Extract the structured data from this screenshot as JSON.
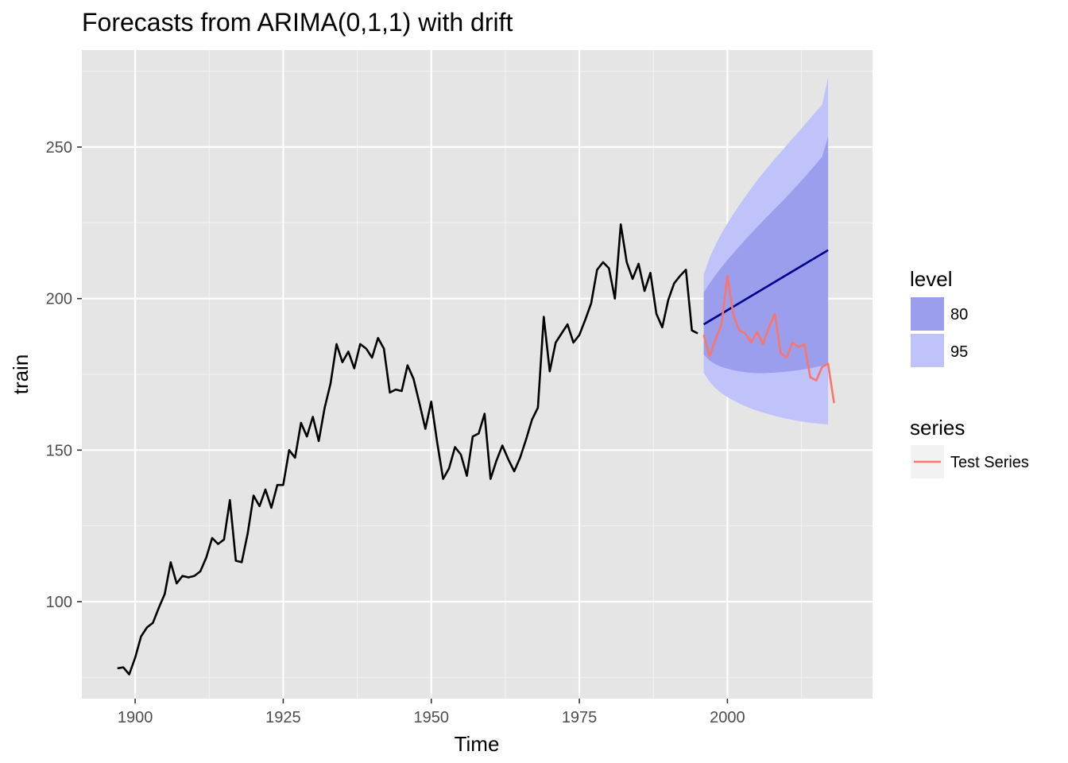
{
  "chart_data": {
    "type": "line",
    "title": "Forecasts from ARIMA(0,1,1) with drift",
    "xlabel": "Time",
    "ylabel": "train",
    "xlim": [
      1891,
      2024.5
    ],
    "ylim": [
      68,
      282
    ],
    "x_ticks": [
      1900,
      1925,
      1950,
      1975,
      2000
    ],
    "y_ticks": [
      100,
      150,
      200,
      250
    ],
    "grid": true,
    "legend_position": "right",
    "series": [
      {
        "role": "observed",
        "color": "#000000",
        "x": [
          1897,
          1898,
          1899,
          1900,
          1901,
          1902,
          1903,
          1904,
          1905,
          1906,
          1907,
          1908,
          1909,
          1910,
          1911,
          1912,
          1913,
          1914,
          1915,
          1916,
          1917,
          1918,
          1919,
          1920,
          1921,
          1922,
          1923,
          1924,
          1925,
          1926,
          1927,
          1928,
          1929,
          1930,
          1931,
          1932,
          1933,
          1934,
          1935,
          1936,
          1937,
          1938,
          1939,
          1940,
          1941,
          1942,
          1943,
          1944,
          1945,
          1946,
          1947,
          1948,
          1949,
          1950,
          1951,
          1952,
          1953,
          1954,
          1955,
          1956,
          1957,
          1958,
          1959,
          1960,
          1961,
          1962,
          1963,
          1964,
          1965,
          1966,
          1967,
          1968,
          1969,
          1970,
          1971,
          1972,
          1973,
          1974,
          1975,
          1976,
          1977,
          1978,
          1979,
          1980,
          1981,
          1982,
          1983,
          1984,
          1985,
          1986,
          1987,
          1988,
          1989,
          1990,
          1991,
          1992,
          1993,
          1994,
          1995
        ],
        "y": [
          78,
          78.3,
          76,
          81.5,
          88.5,
          91.5,
          93,
          98,
          102.5,
          113,
          106,
          108.5,
          108,
          108.5,
          110,
          114.5,
          121,
          119,
          120.5,
          133.5,
          113.5,
          113,
          122.5,
          135,
          131.5,
          137,
          131,
          138.5,
          138.5,
          150,
          147.5,
          159,
          154.5,
          161,
          153,
          164,
          172,
          185,
          179,
          182.5,
          177,
          185,
          183.5,
          180.5,
          187,
          183.5,
          169,
          170,
          169.5,
          178,
          173.5,
          165.5,
          157,
          166,
          152.5,
          140.5,
          144,
          151,
          148.5,
          141.5,
          154.5,
          155.5,
          162,
          140.5,
          146.5,
          151.5,
          147,
          143,
          147.5,
          153.5,
          160,
          164,
          194,
          176,
          185.5,
          188.5,
          191.5,
          185.5,
          188,
          193,
          198.5,
          209.5,
          212,
          210,
          200,
          224.5,
          212,
          206.5,
          211.5,
          202.5,
          208.5,
          195,
          190.5,
          199.5,
          205,
          207.5,
          209.5,
          189.5,
          188.5
        ]
      },
      {
        "role": "point-forecast",
        "color": "#00008b",
        "x": [
          1996,
          2017
        ],
        "y": [
          191.5,
          216
        ]
      },
      {
        "name": "Test Series",
        "color": "#f8766d",
        "x": [
          1996,
          1997,
          1998,
          1999,
          2000,
          2001,
          2002,
          2003,
          2004,
          2005,
          2006,
          2007,
          2008,
          2009,
          2010,
          2011,
          2012,
          2013,
          2014,
          2015,
          2016,
          2017,
          2018
        ],
        "y": [
          188,
          181,
          186.5,
          191.5,
          207.5,
          194.5,
          189.5,
          188.5,
          185.5,
          189,
          185,
          190.5,
          195,
          182,
          180.5,
          185.5,
          184,
          185,
          174,
          173,
          177.5,
          178.5,
          165.5
        ]
      }
    ],
    "intervals": [
      {
        "level": "95",
        "color": "#c0c2fa",
        "x": [
          1996,
          1997,
          1998,
          1999,
          2000,
          2001,
          2002,
          2003,
          2004,
          2005,
          2006,
          2007,
          2008,
          2009,
          2010,
          2011,
          2012,
          2013,
          2014,
          2015,
          2016,
          2017
        ],
        "lower": [
          175.5,
          172.5,
          170.4,
          168.8,
          167.5,
          166.4,
          165.4,
          164.5,
          163.7,
          163,
          162.4,
          161.8,
          161.3,
          160.8,
          160.4,
          160,
          159.6,
          159.3,
          159,
          158.8,
          158.6,
          158.5
        ],
        "upper": [
          208,
          213.5,
          217.8,
          221.5,
          224.8,
          227.9,
          230.8,
          233.6,
          236.3,
          238.9,
          241.4,
          243.8,
          246.1,
          248.3,
          250.6,
          252.8,
          255,
          257.3,
          259.5,
          261.8,
          263.9,
          273
        ]
      },
      {
        "level": "80",
        "color": "#9a9eec",
        "x": [
          1996,
          1997,
          1998,
          1999,
          2000,
          2001,
          2002,
          2003,
          2004,
          2005,
          2006,
          2007,
          2008,
          2009,
          2010,
          2011,
          2012,
          2013,
          2014,
          2015,
          2016,
          2017
        ],
        "lower": [
          181.5,
          179.5,
          178.3,
          177.5,
          176.9,
          176.4,
          176,
          175.7,
          175.5,
          175.4,
          175.4,
          175.5,
          175.6,
          175.7,
          175.9,
          176.1,
          176.4,
          176.7,
          177,
          177.4,
          177.8,
          178.5
        ],
        "upper": [
          202,
          205,
          207.8,
          210.3,
          212.7,
          215,
          217.2,
          219.4,
          221.5,
          223.6,
          225.6,
          227.6,
          229.6,
          231.6,
          233.6,
          235.7,
          237.8,
          240,
          242.2,
          244.5,
          246.8,
          253.5
        ]
      }
    ]
  },
  "legend": {
    "level_title": "level",
    "levels": [
      {
        "label": "80",
        "color": "#9a9eec"
      },
      {
        "label": "95",
        "color": "#c0c2fa"
      }
    ],
    "series_title": "series",
    "series_items": [
      {
        "label": "Test Series",
        "color": "#f8766d"
      }
    ]
  }
}
